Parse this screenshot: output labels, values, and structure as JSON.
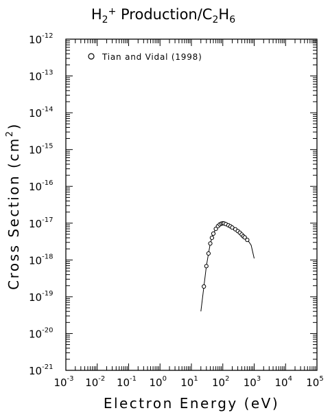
{
  "chart_data": {
    "type": "scatter",
    "title": {
      "main": "H",
      "sub1": "2",
      "sup1": "+",
      "mid": " Production/C",
      "sub2": "2",
      "mid2": "H",
      "sub3": "6"
    },
    "xlabel": "Electron Energy (eV)",
    "ylabel": {
      "main": "Cross Section (cm",
      "sup": "2",
      "end": ")"
    },
    "x_scale": "log",
    "y_scale": "log",
    "xlim": [
      0.001,
      100000
    ],
    "ylim": [
      1e-21,
      1e-12
    ],
    "x_tick_exponents": [
      "-3",
      "-2",
      "-1",
      "0",
      "1",
      "2",
      "3",
      "4",
      "5"
    ],
    "y_tick_exponents": [
      "-21",
      "-20",
      "-19",
      "-18",
      "-17",
      "-16",
      "-15",
      "-14",
      "-13",
      "-12"
    ],
    "tick_base": "10",
    "grid": false,
    "legend": {
      "position": "top-left",
      "marker": "open-circle"
    },
    "series": [
      {
        "name": "Tian and Vidal (1998)",
        "marker": "open-circle",
        "x": [
          25,
          30,
          35,
          40,
          45,
          50,
          60,
          70,
          80,
          90,
          100,
          110,
          125,
          150,
          175,
          200,
          250,
          300,
          350,
          400,
          450,
          500,
          600
        ],
        "y": [
          1.9e-19,
          6.8e-19,
          1.5e-18,
          2.8e-18,
          4e-18,
          5.2e-18,
          7e-18,
          8.3e-18,
          9.2e-18,
          9.7e-18,
          9.9e-18,
          9.8e-18,
          9.4e-18,
          8.8e-18,
          8.2e-18,
          7.6e-18,
          6.8e-18,
          6.1e-18,
          5.5e-18,
          4.9e-18,
          4.4e-18,
          4.1e-18,
          3.5e-18
        ]
      },
      {
        "marker": "none",
        "line": "solid",
        "x": [
          20,
          25,
          30,
          35,
          40,
          50,
          60,
          70,
          80,
          90,
          100,
          125,
          150,
          200,
          250,
          300,
          400,
          500,
          600,
          700,
          800,
          1000
        ],
        "y": [
          4e-20,
          1.9e-19,
          6.8e-19,
          1.5e-18,
          2.8e-18,
          5.2e-18,
          7e-18,
          8.3e-18,
          9.2e-18,
          9.7e-18,
          9.9e-18,
          9.4e-18,
          8.8e-18,
          7.6e-18,
          6.8e-18,
          6.1e-18,
          4.9e-18,
          4.1e-18,
          3.5e-18,
          3e-18,
          2.5e-18,
          1.1e-18
        ]
      }
    ]
  }
}
